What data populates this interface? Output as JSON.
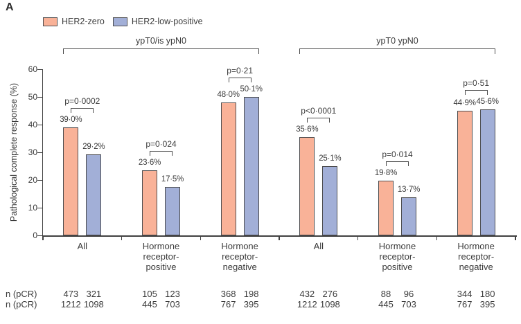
{
  "panel_label": "A",
  "colors": {
    "her2_zero_fill": "#F9B298",
    "her2_low_fill": "#A2AFD7",
    "bar_outline": "#4D4D4F",
    "axis": "#404040",
    "text": "#3B3B3B"
  },
  "legend": {
    "items": [
      {
        "label": "HER2-zero",
        "color_key": "her2_zero_fill"
      },
      {
        "label": "HER2-low-positive",
        "color_key": "her2_low_fill"
      }
    ]
  },
  "chart_data": {
    "type": "bar",
    "ylabel": "Pathological complete response (%)",
    "ylim": [
      0,
      60
    ],
    "yticks": [
      0,
      10,
      20,
      30,
      40,
      50,
      60
    ],
    "grid": false,
    "legend_position": "top-left",
    "categories": [
      [
        "All"
      ],
      [
        "Hormone",
        "receptor-",
        "positive"
      ],
      [
        "Hormone",
        "receptor-",
        "negative"
      ],
      [
        "All"
      ],
      [
        "Hormone",
        "receptor-",
        "positive"
      ],
      [
        "Hormone",
        "receptor-",
        "negative"
      ]
    ],
    "series": [
      {
        "name": "HER2-zero",
        "values": [
          39.0,
          23.6,
          48.0,
          35.6,
          19.8,
          44.9
        ]
      },
      {
        "name": "HER2-low-positive",
        "values": [
          29.2,
          17.5,
          50.1,
          25.1,
          13.7,
          45.6
        ]
      }
    ],
    "value_labels": [
      [
        "39·0%",
        "29·2%"
      ],
      [
        "23·6%",
        "17·5%"
      ],
      [
        "48·0%",
        "50·1%"
      ],
      [
        "35·6%",
        "25·1%"
      ],
      [
        "19·8%",
        "13·7%"
      ],
      [
        "44·9%",
        "45·6%"
      ]
    ],
    "p_values": [
      "p=0·0002",
      "p=0·024",
      "p=0·21",
      "p<0·0001",
      "p=0·014",
      "p=0·51"
    ],
    "section_brackets": [
      {
        "label": "ypT0/is ypN0",
        "from_group": 0,
        "to_group": 2
      },
      {
        "label": "ypT0 ypN0",
        "from_group": 3,
        "to_group": 5
      }
    ],
    "counts_table": {
      "row_labels": [
        "n (pCR)",
        "n (pCR)"
      ],
      "rows": [
        [
          [
            "473",
            "321"
          ],
          [
            "105",
            "123"
          ],
          [
            "368",
            "198"
          ],
          [
            "432",
            "276"
          ],
          [
            "88",
            "96"
          ],
          [
            "344",
            "180"
          ]
        ],
        [
          [
            "1212",
            "1098"
          ],
          [
            "445",
            "703"
          ],
          [
            "767",
            "395"
          ],
          [
            "1212",
            "1098"
          ],
          [
            "445",
            "703"
          ],
          [
            "767",
            "395"
          ]
        ]
      ]
    }
  }
}
